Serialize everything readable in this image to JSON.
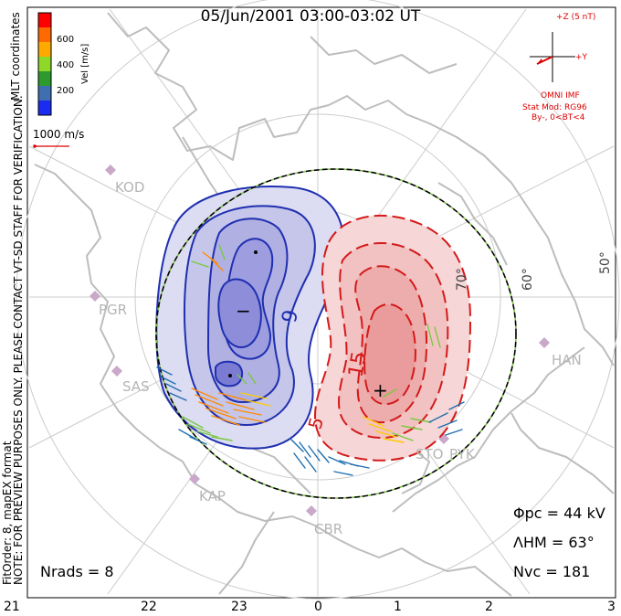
{
  "title": "05/Jun/2001 03:00-03:02 UT",
  "side_notes": {
    "line1": "NOTE: FOR PREVIEW PURPOSES ONLY. PLEASE CONTACT VT-SD STAFF FOR VERIFICATION.",
    "line2": "FitOrder: 8, mapEX format"
  },
  "coordinates_label": "MLT coordinates",
  "colorbar": {
    "label": "Vel [m/s]",
    "ticks": [
      "600",
      "400",
      "200"
    ],
    "colors": [
      "#ff0000",
      "#ff6a00",
      "#ffaa00",
      "#8ed82a",
      "#2d9a2d",
      "#3f6fb0",
      "#1a2cf0"
    ]
  },
  "reference_vector": {
    "label": "1000 m/s"
  },
  "imf": {
    "bz_label": "+Z (5 nT)",
    "by_label": "+Y",
    "source": "OMNI IMF",
    "model": "Stat Mod: RG96",
    "bin": "By-, 0<BT<4"
  },
  "stations": [
    "KOD",
    "PGR",
    "SAS",
    "KAP",
    "CBR",
    "STO",
    "PYK",
    "HAN"
  ],
  "latitude_labels": [
    "50°",
    "60°",
    "70°"
  ],
  "contour_labels": [
    "9",
    "15",
    "5"
  ],
  "markers": {
    "min": "−",
    "max": "+"
  },
  "stats": {
    "phi_pc": "Φpc = 44 kV",
    "lambda_hm": "ΛHM = 63°",
    "n_vc": "Nvc = 181",
    "n_rads": "Nrads = 8"
  },
  "mlt_ticks": [
    "21",
    "22",
    "23",
    "0",
    "1",
    "2",
    "3"
  ],
  "colors": {
    "negative_cell": "#1f2fb0",
    "positive_cell": "#d41a1a",
    "hmb_dash": "#7ec242",
    "imf_red": "#dd0000",
    "grid_gray": "#c8c8c8"
  }
}
